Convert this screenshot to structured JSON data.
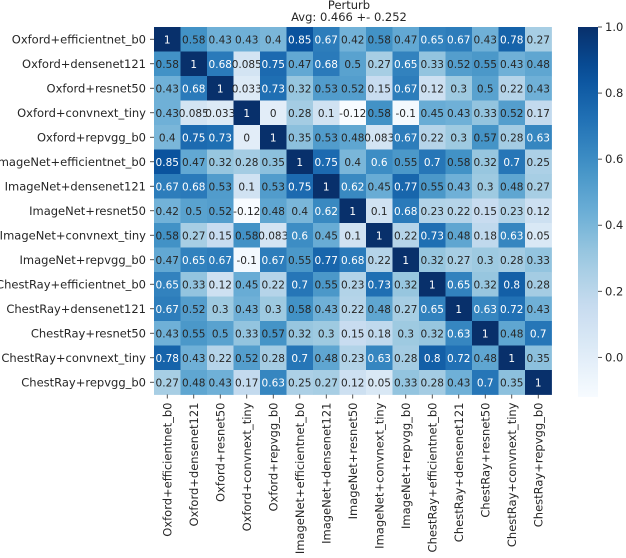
{
  "chart_data": {
    "type": "heatmap",
    "title": "Perturb",
    "subtitle": "Avg: 0.466 +- 0.252",
    "row_labels": [
      "Oxford+efficientnet_b0",
      "Oxford+densenet121",
      "Oxford+resnet50",
      "Oxford+convnext_tiny",
      "Oxford+repvgg_b0",
      "ImageNet+efficientnet_b0",
      "ImageNet+densenet121",
      "ImageNet+resnet50",
      "ImageNet+convnext_tiny",
      "ImageNet+repvgg_b0",
      "ChestRay+efficientnet_b0",
      "ChestRay+densenet121",
      "ChestRay+resnet50",
      "ChestRay+convnext_tiny",
      "ChestRay+repvgg_b0"
    ],
    "col_labels": [
      "Oxford+efficientnet_b0",
      "Oxford+densenet121",
      "Oxford+resnet50",
      "Oxford+convnext_tiny",
      "Oxford+repvgg_b0",
      "ImageNet+efficientnet_b0",
      "ImageNet+densenet121",
      "ImageNet+resnet50",
      "ImageNet+convnext_tiny",
      "ImageNet+repvgg_b0",
      "ChestRay+efficientnet_b0",
      "ChestRay+densenet121",
      "ChestRay+resnet50",
      "ChestRay+convnext_tiny",
      "ChestRay+repvgg_b0"
    ],
    "values": [
      [
        "1",
        "0.58",
        "0.43",
        "0.43",
        "0.4",
        "0.85",
        "0.67",
        "0.42",
        "0.58",
        "0.47",
        "0.65",
        "0.67",
        "0.43",
        "0.78",
        "0.27"
      ],
      [
        "0.58",
        "1",
        "0.68",
        "0.085",
        "0.75",
        "0.47",
        "0.68",
        "0.5",
        "0.27",
        "0.65",
        "0.33",
        "0.52",
        "0.55",
        "0.43",
        "0.48"
      ],
      [
        "0.43",
        "0.68",
        "1",
        "0.033",
        "0.73",
        "0.32",
        "0.53",
        "0.52",
        "0.15",
        "0.67",
        "0.12",
        "0.3",
        "0.5",
        "0.22",
        "0.43"
      ],
      [
        "0.43",
        "0.085",
        "0.033",
        "1",
        "0",
        "0.28",
        "0.1",
        "-0.12",
        "0.58",
        "-0.1",
        "0.45",
        "0.43",
        "0.33",
        "0.52",
        "0.17"
      ],
      [
        "0.4",
        "0.75",
        "0.73",
        "0",
        "1",
        "0.35",
        "0.53",
        "0.48",
        "0.083",
        "0.67",
        "0.22",
        "0.3",
        "0.57",
        "0.28",
        "0.63"
      ],
      [
        "0.85",
        "0.47",
        "0.32",
        "0.28",
        "0.35",
        "1",
        "0.75",
        "0.4",
        "0.6",
        "0.55",
        "0.7",
        "0.58",
        "0.32",
        "0.7",
        "0.25"
      ],
      [
        "0.67",
        "0.68",
        "0.53",
        "0.1",
        "0.53",
        "0.75",
        "1",
        "0.62",
        "0.45",
        "0.77",
        "0.55",
        "0.43",
        "0.3",
        "0.48",
        "0.27"
      ],
      [
        "0.42",
        "0.5",
        "0.52",
        "-0.12",
        "0.48",
        "0.4",
        "0.62",
        "1",
        "0.1",
        "0.68",
        "0.23",
        "0.22",
        "0.15",
        "0.23",
        "0.12"
      ],
      [
        "0.58",
        "0.27",
        "0.15",
        "0.58",
        "0.083",
        "0.6",
        "0.45",
        "0.1",
        "1",
        "0.22",
        "0.73",
        "0.48",
        "0.18",
        "0.63",
        "0.05"
      ],
      [
        "0.47",
        "0.65",
        "0.67",
        "-0.1",
        "0.67",
        "0.55",
        "0.77",
        "0.68",
        "0.22",
        "1",
        "0.32",
        "0.27",
        "0.3",
        "0.28",
        "0.33"
      ],
      [
        "0.65",
        "0.33",
        "0.12",
        "0.45",
        "0.22",
        "0.7",
        "0.55",
        "0.23",
        "0.73",
        "0.32",
        "1",
        "0.65",
        "0.32",
        "0.8",
        "0.28"
      ],
      [
        "0.67",
        "0.52",
        "0.3",
        "0.43",
        "0.3",
        "0.58",
        "0.43",
        "0.22",
        "0.48",
        "0.27",
        "0.65",
        "1",
        "0.63",
        "0.72",
        "0.43"
      ],
      [
        "0.43",
        "0.55",
        "0.5",
        "0.33",
        "0.57",
        "0.32",
        "0.3",
        "0.15",
        "0.18",
        "0.3",
        "0.32",
        "0.63",
        "1",
        "0.48",
        "0.7"
      ],
      [
        "0.78",
        "0.43",
        "0.22",
        "0.52",
        "0.28",
        "0.7",
        "0.48",
        "0.23",
        "0.63",
        "0.28",
        "0.8",
        "0.72",
        "0.48",
        "1",
        "0.35"
      ],
      [
        "0.27",
        "0.48",
        "0.43",
        "0.17",
        "0.63",
        "0.25",
        "0.27",
        "0.12",
        "0.05",
        "0.33",
        "0.28",
        "0.43",
        "0.7",
        "0.35",
        "1"
      ]
    ],
    "vmin": -0.12,
    "vmax": 1.0,
    "colormap": "Blues",
    "colorbar_ticks": [
      "1.0",
      "0.8",
      "0.6",
      "0.4",
      "0.2",
      "0.0"
    ],
    "colors": {
      "low": "#f7fbff",
      "high": "#08306b",
      "text_dark": "#262626",
      "text_light": "#ffffff"
    }
  }
}
